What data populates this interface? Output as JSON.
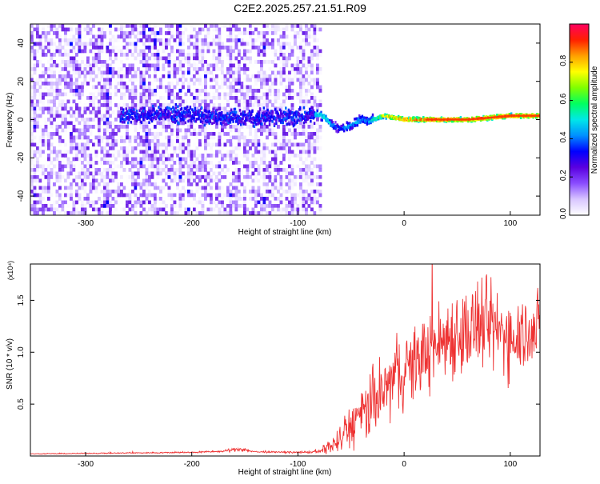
{
  "title": "C2E2.2025.257.21.51.R09",
  "chart_data": [
    {
      "type": "heatmap",
      "xlabel": "Height of straight line (km)",
      "ylabel": "Frequency (Hz)",
      "xlim": [
        -352,
        128
      ],
      "ylim": [
        -50,
        50
      ],
      "x_ticks": [
        -300,
        -200,
        -100,
        0,
        100
      ],
      "y_ticks": [
        -40,
        -20,
        0,
        20,
        40
      ],
      "colorbar": {
        "label": "Normalized spectral amplitude",
        "range": [
          0,
          1
        ],
        "ticks": [
          "0.0",
          "0.2",
          "0.4",
          "0.6",
          "0.8"
        ],
        "colors": [
          "#ffffff",
          "#d8c6ff",
          "#8a4dff",
          "#5a00e0",
          "#0000ff",
          "#0090ff",
          "#00e8e8",
          "#00ff60",
          "#7fff00",
          "#ffff00",
          "#ffa000",
          "#ff2000",
          "#ff0060"
        ]
      },
      "noise_region_x": [
        -352,
        -80
      ],
      "ridge": {
        "x": [
          -268,
          -240,
          -200,
          -160,
          -130,
          -100,
          -82,
          -75,
          -68,
          -60,
          -55,
          -50,
          -45,
          -40,
          -35,
          -30,
          -25,
          -20,
          -10,
          0,
          20,
          40,
          60,
          80,
          100,
          128
        ],
        "frequency": [
          2,
          3,
          2,
          1,
          1,
          2,
          3,
          1,
          -3,
          -5,
          -4,
          -3,
          -1,
          0,
          -1,
          0,
          1,
          2,
          1,
          0,
          0,
          0,
          0,
          1,
          2,
          2
        ],
        "amplitude": [
          0.3,
          0.35,
          0.35,
          0.3,
          0.3,
          0.3,
          0.5,
          0.55,
          0.4,
          0.35,
          0.45,
          0.45,
          0.5,
          0.45,
          0.45,
          0.55,
          0.6,
          0.8,
          0.8,
          0.9,
          0.92,
          0.92,
          0.9,
          0.92,
          0.92,
          0.9
        ]
      }
    },
    {
      "type": "line",
      "xlabel": "Height of straight line (km)",
      "ylabel": "SNR (10 * v/v)",
      "y_multiplier": "(x10⁴)",
      "xlim": [
        -352,
        128
      ],
      "ylim": [
        0,
        18500
      ],
      "x_ticks": [
        -300,
        -200,
        -100,
        0,
        100
      ],
      "y_ticks": [
        5000,
        10000,
        15000
      ],
      "y_tick_labels": [
        "0.5",
        "1.0",
        "1.5"
      ],
      "series": [
        {
          "color": "#ee3333",
          "x": [
            -352,
            -300,
            -250,
            -200,
            -170,
            -155,
            -140,
            -100,
            -80,
            -60,
            -50,
            -40,
            -30,
            -20,
            -10,
            0,
            10,
            20,
            30,
            40,
            50,
            60,
            70,
            80,
            90,
            100,
            110,
            128
          ],
          "y": [
            200,
            250,
            300,
            350,
            450,
            700,
            400,
            350,
            400,
            1500,
            3000,
            3800,
            5000,
            6000,
            7500,
            8200,
            9000,
            10000,
            10500,
            11500,
            12000,
            12000,
            12500,
            12500,
            12000,
            11500,
            12000,
            12500
          ],
          "noise": [
            30,
            40,
            50,
            60,
            80,
            200,
            80,
            60,
            150,
            1200,
            2000,
            2500,
            2800,
            3000,
            3000,
            3000,
            3200,
            3200,
            3400,
            3600,
            3800,
            3800,
            3800,
            3800,
            3600,
            3400,
            3200,
            3000
          ]
        }
      ]
    }
  ]
}
